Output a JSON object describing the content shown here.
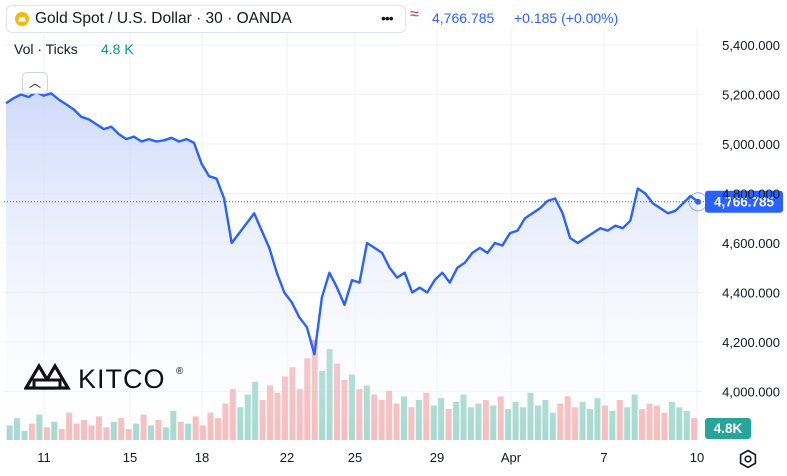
{
  "header": {
    "symbol_title": "Gold Spot / U.S. Dollar · 30 · OANDA",
    "menu_icon": "more-dots-icon",
    "indicator_icon": "wave-icon",
    "price": "4,766.785",
    "change": "+0.185 (+0.00%)"
  },
  "volume_legend": {
    "label": "Vol · Ticks",
    "value": "4.8 K"
  },
  "logo": {
    "text": "KITCO",
    "mark": "®"
  },
  "colors": {
    "line": "#2962ff",
    "area": "#dfe7fb",
    "volume_up": "#7fc9b8",
    "volume_down": "#f2a0a0",
    "volume_tag": "#26a69a",
    "text": "#131722",
    "grid": "#eef0f3"
  },
  "chart_data": {
    "type": "line",
    "title": "",
    "ylim": [
      3880,
      5480
    ],
    "y_ticks": [
      "5,400.000",
      "5,200.000",
      "5,000.000",
      "4,800.000",
      "4,600.000",
      "4,400.000",
      "4,200.000",
      "4,000.000"
    ],
    "y_tick_values": [
      5400,
      5200,
      5000,
      4800,
      4600,
      4400,
      4200,
      4000
    ],
    "x_ticks": [
      "11",
      "15",
      "18",
      "22",
      "25",
      "29",
      "Apr",
      "7",
      "10"
    ],
    "last_price_label": "4,766.785",
    "last_price": 4766.785,
    "volume_label": "4.8K",
    "series": [
      {
        "values": [
          5165,
          5185,
          5200,
          5190,
          5210,
          5195,
          5205,
          5180,
          5160,
          5140,
          5110,
          5100,
          5080,
          5060,
          5070,
          5040,
          5020,
          5030,
          5010,
          5020,
          5010,
          5015,
          5025,
          5010,
          5020,
          5005,
          4920,
          4870,
          4860,
          4780,
          4600,
          4640,
          4680,
          4720,
          4650,
          4580,
          4480,
          4400,
          4360,
          4300,
          4260,
          4150,
          4380,
          4480,
          4420,
          4350,
          4450,
          4440,
          4600,
          4580,
          4560,
          4500,
          4460,
          4480,
          4400,
          4420,
          4400,
          4450,
          4480,
          4440,
          4500,
          4520,
          4560,
          4580,
          4560,
          4600,
          4590,
          4640,
          4650,
          4700,
          4720,
          4740,
          4770,
          4780,
          4720,
          4620,
          4600,
          4620,
          4640,
          4660,
          4650,
          4670,
          4660,
          4690,
          4820,
          4800,
          4760,
          4740,
          4720,
          4730,
          4760,
          4790,
          4766.785
        ],
        "volume": [
          8,
          12,
          5,
          9,
          14,
          7,
          10,
          6,
          15,
          9,
          11,
          8,
          13,
          7,
          10,
          12,
          6,
          9,
          14,
          8,
          11,
          7,
          16,
          10,
          9,
          13,
          8,
          15,
          12,
          20,
          28,
          18,
          25,
          32,
          22,
          30,
          26,
          35,
          40,
          28,
          45,
          55,
          38,
          50,
          42,
          33,
          36,
          28,
          30,
          25,
          22,
          27,
          20,
          24,
          18,
          22,
          26,
          19,
          23,
          17,
          21,
          25,
          18,
          20,
          22,
          19,
          24,
          17,
          21,
          18,
          26,
          19,
          22,
          15,
          20,
          24,
          18,
          21,
          17,
          23,
          19,
          16,
          22,
          18,
          25,
          17,
          20,
          19,
          15,
          21,
          18,
          16,
          12
        ]
      }
    ]
  }
}
